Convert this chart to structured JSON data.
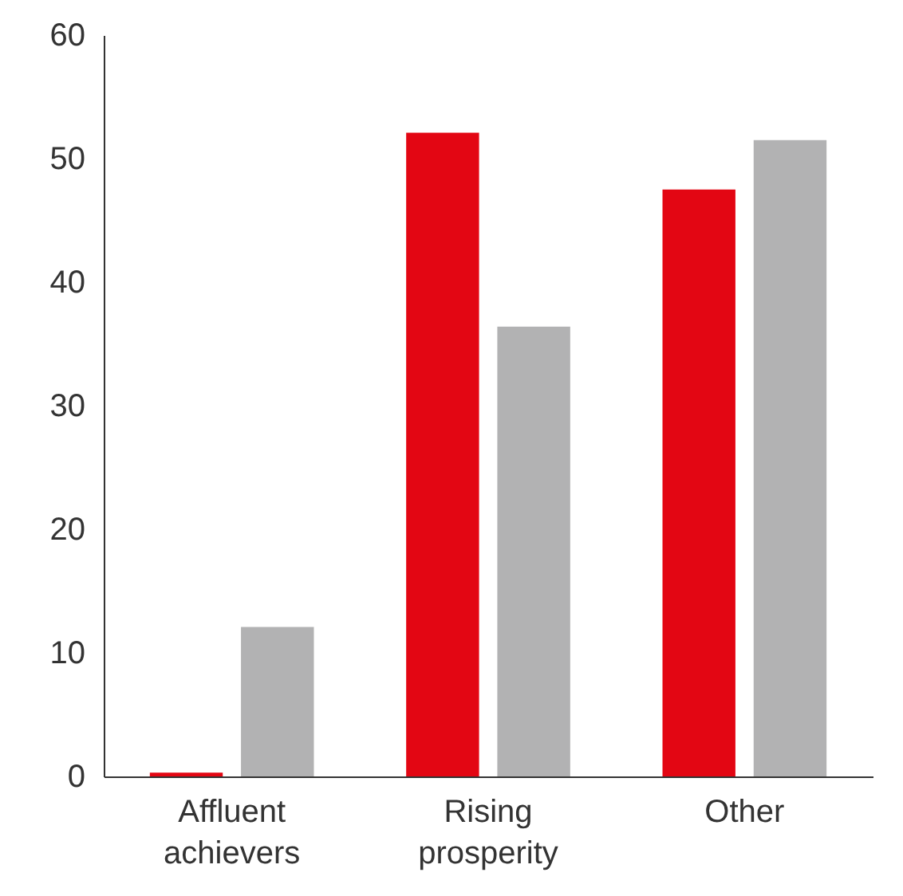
{
  "chart_data": {
    "type": "bar",
    "categories": [
      "Affluent achievers",
      "Rising prosperity",
      "Other"
    ],
    "series": [
      {
        "color": "#e30613",
        "values": [
          0.3,
          52.1,
          47.5
        ]
      },
      {
        "color": "#b2b2b3",
        "values": [
          12.1,
          36.4,
          51.5
        ]
      }
    ],
    "ylim": [
      0,
      60
    ],
    "yticks": [
      0,
      10,
      20,
      30,
      40,
      50,
      60
    ],
    "grid": false,
    "legend": false
  }
}
